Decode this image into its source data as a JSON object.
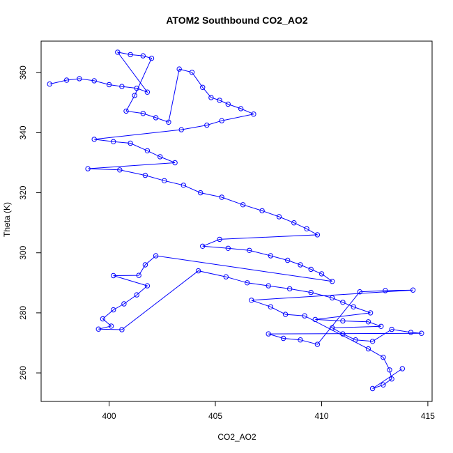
{
  "chart_data": {
    "type": "scatter",
    "title": "ATOM2 Southbound CO2_AO2",
    "xlabel": "CO2_AO2",
    "ylabel": "Theta (K)",
    "xlim": [
      396.8,
      415.2
    ],
    "ylim": [
      250.5,
      370.5
    ],
    "xticks": [
      400,
      405,
      410,
      415
    ],
    "yticks": [
      260,
      280,
      300,
      320,
      340,
      360
    ],
    "grid": false,
    "legend": "none",
    "marker": "open-circle",
    "connected": true,
    "colors": {
      "series": "#0000ff",
      "axes": "#000000",
      "background": "#ffffff"
    },
    "series": [
      {
        "values": [
          [
            397.2,
            356.2
          ],
          [
            398.0,
            357.5
          ],
          [
            398.6,
            358.0
          ],
          [
            399.3,
            357.3
          ],
          [
            400.0,
            356.0
          ],
          [
            400.6,
            355.4
          ],
          [
            401.3,
            354.8
          ],
          [
            401.8,
            353.5
          ],
          [
            400.4,
            366.8
          ],
          [
            401.0,
            366.0
          ],
          [
            401.6,
            365.6
          ],
          [
            402.0,
            364.8
          ],
          [
            401.2,
            352.4
          ],
          [
            400.8,
            347.2
          ],
          [
            401.6,
            346.4
          ],
          [
            402.2,
            345.0
          ],
          [
            402.8,
            343.5
          ],
          [
            403.3,
            361.2
          ],
          [
            403.9,
            360.1
          ],
          [
            404.4,
            355.1
          ],
          [
            404.8,
            351.7
          ],
          [
            405.2,
            350.8
          ],
          [
            405.6,
            349.5
          ],
          [
            406.2,
            348.0
          ],
          [
            406.8,
            346.2
          ],
          [
            405.3,
            344.0
          ],
          [
            404.6,
            342.5
          ],
          [
            403.4,
            341.0
          ],
          [
            399.3,
            337.8
          ],
          [
            400.2,
            337.0
          ],
          [
            401.0,
            336.5
          ],
          [
            401.8,
            334.0
          ],
          [
            402.4,
            332.0
          ],
          [
            403.1,
            330.0
          ],
          [
            399.0,
            328.0
          ],
          [
            400.5,
            327.6
          ],
          [
            401.7,
            325.8
          ],
          [
            402.6,
            324.0
          ],
          [
            403.5,
            322.5
          ],
          [
            404.3,
            320.0
          ],
          [
            405.3,
            318.5
          ],
          [
            406.3,
            316.0
          ],
          [
            407.2,
            314.0
          ],
          [
            408.0,
            312.0
          ],
          [
            408.7,
            310.0
          ],
          [
            409.3,
            308.0
          ],
          [
            409.8,
            306.0
          ],
          [
            405.2,
            304.5
          ],
          [
            404.4,
            302.2
          ],
          [
            405.6,
            301.5
          ],
          [
            406.6,
            300.8
          ],
          [
            407.6,
            299.0
          ],
          [
            408.4,
            297.5
          ],
          [
            409.0,
            296.0
          ],
          [
            409.5,
            294.5
          ],
          [
            410.0,
            293.0
          ],
          [
            410.5,
            290.5
          ],
          [
            402.2,
            299.0
          ],
          [
            401.7,
            296.0
          ],
          [
            401.4,
            292.5
          ],
          [
            400.2,
            292.4
          ],
          [
            401.8,
            289.0
          ],
          [
            401.3,
            286.0
          ],
          [
            400.7,
            283.0
          ],
          [
            400.2,
            281.0
          ],
          [
            399.7,
            278.0
          ],
          [
            400.1,
            275.6
          ],
          [
            399.5,
            274.6
          ],
          [
            400.6,
            274.4
          ],
          [
            404.2,
            294.0
          ],
          [
            405.5,
            292.0
          ],
          [
            406.5,
            290.0
          ],
          [
            407.5,
            289.0
          ],
          [
            408.5,
            288.0
          ],
          [
            409.5,
            286.8
          ],
          [
            410.5,
            285.0
          ],
          [
            411.0,
            283.5
          ],
          [
            411.5,
            282.0
          ],
          [
            412.3,
            280.0
          ],
          [
            409.7,
            277.8
          ],
          [
            411.0,
            277.3
          ],
          [
            412.2,
            277.0
          ],
          [
            412.8,
            275.5
          ],
          [
            410.5,
            275.0
          ],
          [
            411.0,
            273.0
          ],
          [
            411.6,
            271.0
          ],
          [
            412.4,
            270.5
          ],
          [
            413.3,
            274.5
          ],
          [
            414.2,
            273.5
          ],
          [
            414.7,
            273.2
          ],
          [
            407.5,
            273.0
          ],
          [
            408.2,
            271.5
          ],
          [
            409.0,
            271.0
          ],
          [
            409.8,
            269.5
          ],
          [
            411.8,
            287.0
          ],
          [
            413.0,
            287.4
          ],
          [
            414.3,
            287.6
          ],
          [
            406.7,
            284.2
          ],
          [
            407.6,
            282.0
          ],
          [
            408.3,
            279.5
          ],
          [
            409.2,
            279.0
          ],
          [
            412.2,
            268.0
          ],
          [
            412.9,
            265.2
          ],
          [
            413.2,
            261.0
          ],
          [
            413.3,
            258.0
          ],
          [
            412.9,
            256.0
          ],
          [
            412.4,
            254.8
          ],
          [
            413.8,
            261.4
          ]
        ]
      }
    ]
  }
}
